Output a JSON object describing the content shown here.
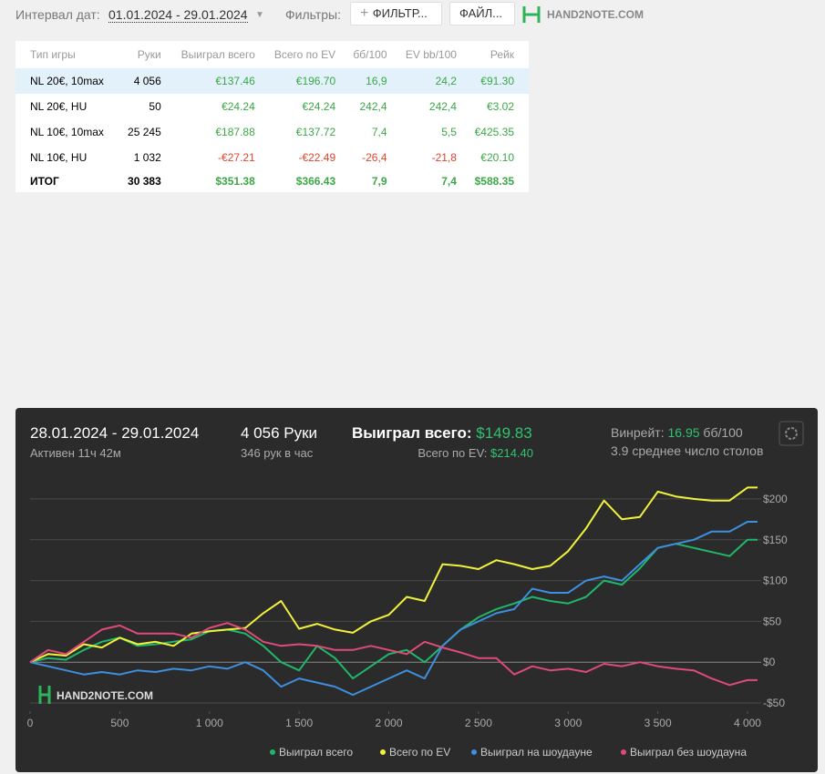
{
  "toolbar": {
    "date_label": "Интервал дат:",
    "date_range": "01.01.2024 - 29.01.2024",
    "filters_label": "Фильтры:",
    "filter_button": "ФИЛЬТР...",
    "file_button": "ФАЙЛ...",
    "logo": "HAND2NOTE.COM"
  },
  "table": {
    "headers": [
      "Тип игры",
      "Руки",
      "Выиграл всего",
      "Всего по EV",
      "бб/100",
      "EV bb/100",
      "Рейк"
    ],
    "rows": [
      [
        "NL 20€, 10max",
        "4 056",
        "€137.46",
        "€196.70",
        "16,9",
        "24,2",
        "€91.30"
      ],
      [
        "NL 20€, HU",
        "50",
        "€24.24",
        "€24.24",
        "242,4",
        "242,4",
        "€3.02"
      ],
      [
        "NL 10€, 10max",
        "25 245",
        "€187.88",
        "€137.72",
        "7,4",
        "5,5",
        "€425.35"
      ],
      [
        "NL 10€, HU",
        "1 032",
        "-€27.21",
        "-€22.49",
        "-26,4",
        "-21,8",
        "€20.10"
      ]
    ],
    "total": [
      "ИТОГ",
      "30 383",
      "$351.38",
      "$366.43",
      "7,9",
      "7,4",
      "$588.35"
    ]
  },
  "panel": {
    "date_range": "28.01.2024 - 29.01.2024",
    "active": "Активен 11ч 42м",
    "hands": "4 056 Руки",
    "hands_per_hour": "346 рук в час",
    "won_label": "Выиграл всего:",
    "won_value": "$149.83",
    "ev_label": "Всего по EV:",
    "ev_value": "$214.40",
    "winrate_label": "Винрейт:",
    "winrate_value": "16.95",
    "winrate_unit": "бб/100",
    "tables_text": "3.9 среднее число столов"
  },
  "chart_data": {
    "type": "line",
    "watermark": "HAND2NOTE.COM",
    "grid": true,
    "x": [
      0,
      100,
      200,
      300,
      400,
      500,
      600,
      700,
      800,
      900,
      1000,
      1100,
      1200,
      1300,
      1400,
      1500,
      1600,
      1700,
      1800,
      1900,
      2000,
      2100,
      2200,
      2300,
      2400,
      2500,
      2600,
      2700,
      2800,
      2900,
      3000,
      3100,
      3200,
      3300,
      3400,
      3500,
      3600,
      3700,
      3800,
      3900,
      4000,
      4056
    ],
    "series": [
      {
        "name": "Выиграл всего",
        "color": "#1fb86a",
        "values": [
          0,
          5,
          3,
          15,
          25,
          30,
          20,
          22,
          25,
          28,
          38,
          40,
          35,
          20,
          0,
          -10,
          20,
          5,
          -20,
          -5,
          10,
          15,
          0,
          20,
          40,
          55,
          65,
          72,
          80,
          75,
          72,
          80,
          100,
          95,
          115,
          140,
          145,
          140,
          135,
          130,
          150,
          150
        ]
      },
      {
        "name": "Всего по EV",
        "color": "#f2f23a",
        "values": [
          0,
          10,
          8,
          22,
          18,
          30,
          22,
          25,
          20,
          35,
          38,
          40,
          42,
          60,
          75,
          41,
          47,
          40,
          36,
          50,
          58,
          80,
          75,
          120,
          118,
          114,
          125,
          120,
          114,
          118,
          136,
          164,
          198,
          175,
          178,
          209,
          203,
          200,
          198,
          198,
          214,
          214
        ]
      },
      {
        "name": "Выиграл на шоудауне",
        "color": "#3d8fe0",
        "values": [
          0,
          -5,
          -10,
          -15,
          -12,
          -15,
          -10,
          -12,
          -8,
          -10,
          -5,
          -8,
          0,
          -10,
          -30,
          -20,
          -25,
          -30,
          -40,
          -30,
          -20,
          -10,
          -20,
          20,
          40,
          50,
          60,
          65,
          90,
          85,
          85,
          100,
          105,
          100,
          120,
          140,
          145,
          150,
          160,
          160,
          172,
          172
        ]
      },
      {
        "name": "Выиграл без шоудауна",
        "color": "#e04a7a",
        "values": [
          0,
          15,
          10,
          25,
          40,
          45,
          35,
          35,
          35,
          30,
          42,
          48,
          40,
          25,
          20,
          22,
          20,
          15,
          15,
          20,
          15,
          10,
          25,
          18,
          12,
          5,
          5,
          -15,
          -5,
          -10,
          -8,
          -12,
          -2,
          -5,
          0,
          -5,
          -8,
          -10,
          -20,
          -28,
          -22,
          -22
        ]
      }
    ],
    "xlim": [
      0,
      4056
    ],
    "ylim": [
      -60,
      220
    ],
    "xticks": [
      0,
      500,
      {
        "value": 1000,
        "label": "1 000"
      },
      {
        "value": 1500,
        "label": "1 500"
      },
      {
        "value": 2000,
        "label": "2 000"
      },
      {
        "value": 2500,
        "label": "2 500"
      },
      {
        "value": 3000,
        "label": "3 000"
      },
      {
        "value": 3500,
        "label": "3 500"
      },
      {
        "value": 4000,
        "label": "4 000"
      }
    ],
    "yticks": [
      {
        "value": -50,
        "label": "-$50"
      },
      {
        "value": 0,
        "label": "$0"
      },
      {
        "value": 50,
        "label": "$50"
      },
      {
        "value": 100,
        "label": "$100"
      },
      {
        "value": 150,
        "label": "$150"
      },
      {
        "value": 200,
        "label": "$200"
      }
    ]
  }
}
